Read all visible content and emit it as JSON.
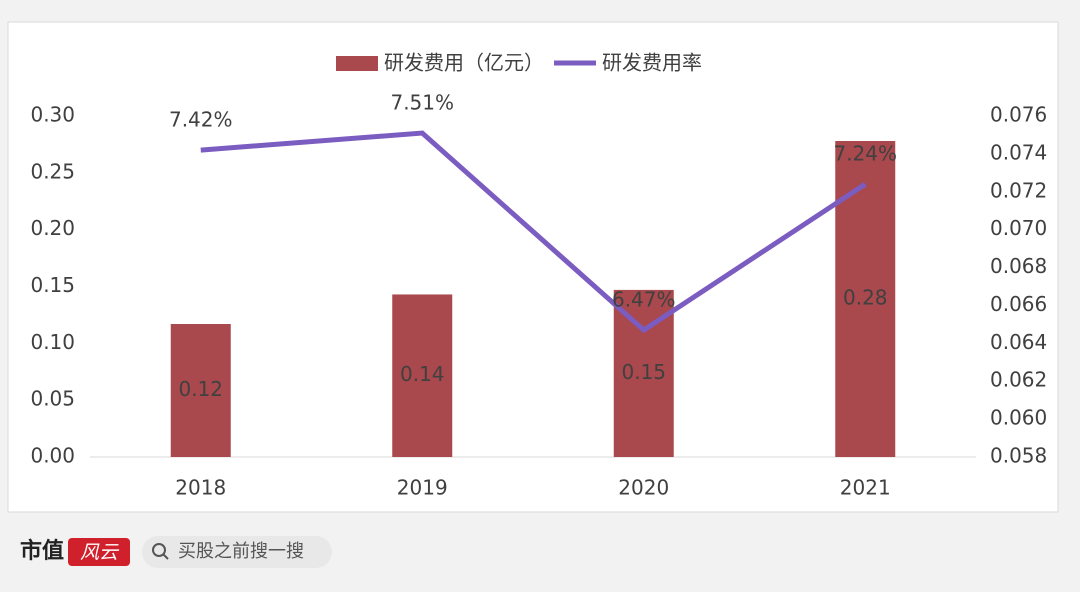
{
  "chart_data": {
    "type": "bar",
    "categories": [
      "2018",
      "2019",
      "2020",
      "2021"
    ],
    "series": [
      {
        "name": "研发费用（亿元）",
        "type": "bar",
        "color": "#a9484d",
        "values": [
          0.117,
          0.143,
          0.147,
          0.278
        ],
        "value_labels": [
          "0.12",
          "0.14",
          "0.15",
          "0.28"
        ]
      },
      {
        "name": "研发费用率",
        "type": "line",
        "axis": "y2",
        "color": "#7b5cc0",
        "values": [
          0.0742,
          0.0751,
          0.0647,
          0.0724
        ],
        "value_labels": [
          "7.42%",
          "7.51%",
          "6.47%",
          "7.24%"
        ]
      }
    ],
    "ylim": [
      0,
      0.3
    ],
    "yticks": [
      {
        "value": 0,
        "label": "0.00"
      },
      0.05,
      {
        "value": 0.1,
        "label": "0.10"
      },
      0.15,
      {
        "value": 0.2,
        "label": "0.20"
      },
      0.25,
      {
        "value": 0.3,
        "label": "0.30"
      }
    ],
    "y2lim": [
      0.058,
      0.076
    ],
    "y2ticks": [
      0.058,
      {
        "value": 0.06,
        "label": "0.060"
      },
      0.062,
      0.064,
      0.066,
      0.068,
      {
        "value": 0.07,
        "label": "0.070"
      },
      0.072,
      0.074,
      0.076
    ],
    "legend": "top",
    "grid": false
  },
  "footer": {
    "brand": "市值",
    "badge": "风云",
    "search": "买股之前搜一搜"
  }
}
